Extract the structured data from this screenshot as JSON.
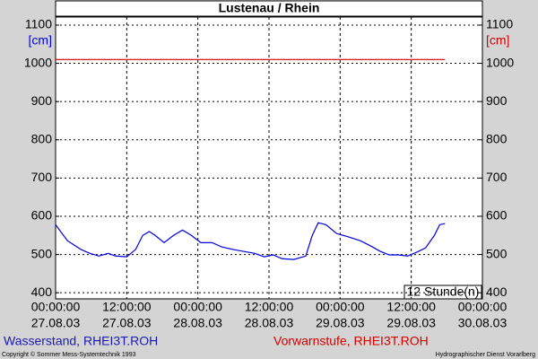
{
  "chart_data": {
    "type": "line",
    "title": "Lustenau / Rhein",
    "y_label": "[cm]",
    "y2_label": "[cm]",
    "annotation": "12 Stunde(n)",
    "xlim": [
      0,
      72
    ],
    "xticks": [
      {
        "value": 0,
        "label": [
          "00:00:00",
          "27.08.03"
        ]
      },
      {
        "value": 12,
        "label": [
          "12:00:00",
          "27.08.03"
        ]
      },
      {
        "value": 24,
        "label": [
          "00:00:00",
          "28.08.03"
        ]
      },
      {
        "value": 36,
        "label": [
          "12:00:00",
          "28.08.03"
        ]
      },
      {
        "value": 48,
        "label": [
          "00:00:00",
          "29.08.03"
        ]
      },
      {
        "value": 60,
        "label": [
          "12:00:00",
          "29.08.03"
        ]
      },
      {
        "value": 72,
        "label": [
          "00:00:00",
          "30.08.03"
        ]
      }
    ],
    "ylim": [
      384,
      1121
    ],
    "yticks": [
      400,
      500,
      600,
      700,
      800,
      900,
      1000,
      1100
    ],
    "grid": true,
    "series": [
      {
        "name": "Wasserstand, RHEI3T.ROH",
        "color": "#0000e0",
        "x": [
          0,
          2,
          4.3,
          5.8,
          7.3,
          8.9,
          10.1,
          12,
          13.5,
          14.7,
          15.8,
          16.8,
          18.3,
          19.9,
          21.4,
          22.9,
          24.5,
          26.4,
          28,
          30,
          31.8,
          33.6,
          35.2,
          36.7,
          38.2,
          40.2,
          42.2,
          43.3,
          44.3,
          45.6,
          47.4,
          49.4,
          51.4,
          53.2,
          54.8,
          56.3,
          57.8,
          59.4,
          60.9,
          62.4,
          63.9,
          64.8,
          65.7
        ],
        "values": [
          578,
          536,
          513,
          503,
          496,
          503,
          496,
          494,
          513,
          550,
          560,
          550,
          531,
          550,
          564,
          550,
          531,
          531,
          520,
          513,
          508,
          503,
          494,
          499,
          489,
          487,
          496,
          550,
          583,
          578,
          555,
          546,
          536,
          522,
          508,
          499,
          499,
          496,
          506,
          517,
          550,
          578,
          581
        ]
      },
      {
        "name": "Vorwarnstufe, RHEI3T.ROH",
        "color": "#d00000",
        "x": [
          0,
          65.7
        ],
        "values": [
          1010,
          1010
        ]
      }
    ],
    "footer_left": "Copyright © Sommer Mess-Systemtechnik 1993",
    "footer_right": "Hydrographischer Dienst Vorarlberg"
  }
}
